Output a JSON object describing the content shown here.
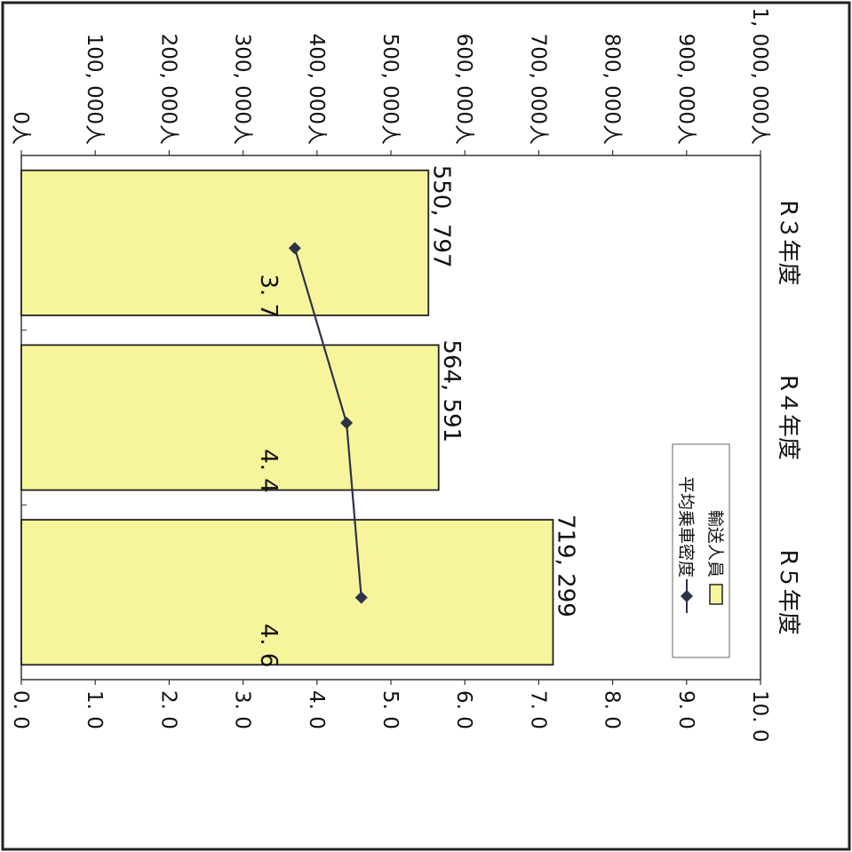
{
  "chart_data": {
    "type": "bar",
    "orientation": "rotated-90-clockwise",
    "categories": [
      "R３年度",
      "R４年度",
      "R５年度"
    ],
    "series": [
      {
        "name": "輸送人員",
        "kind": "bar",
        "axis": "left",
        "values": [
          550797,
          564591,
          719299
        ],
        "labels": [
          "550, 797",
          "564, 591",
          "719, 299"
        ],
        "color": "#f7f59b"
      },
      {
        "name": "平均乗車密度",
        "kind": "line",
        "axis": "right",
        "values": [
          3.7,
          4.4,
          4.6
        ],
        "labels": [
          "3. 7",
          "4. 4",
          "4. 6"
        ],
        "color": "#2b3347"
      }
    ],
    "y_left": {
      "range": [
        0,
        1000000
      ],
      "ticks": [
        "0人",
        "100, 000人",
        "200, 000人",
        "300, 000人",
        "400, 000人",
        "500, 000人",
        "600, 000人",
        "700, 000人",
        "800, 000人",
        "900, 000人",
        "1, 000, 000人"
      ]
    },
    "y_right": {
      "range": [
        0,
        10
      ],
      "ticks": [
        "0. 0",
        "1. 0",
        "2. 0",
        "3. 0",
        "4. 0",
        "5. 0",
        "6. 0",
        "7. 0",
        "8. 0",
        "9. 0",
        "10. 0"
      ]
    },
    "legend": {
      "position": "top-left",
      "entries": [
        "輸送人員",
        "平均乗車密度"
      ]
    },
    "grid": false
  }
}
